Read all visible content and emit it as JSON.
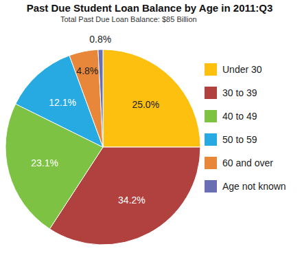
{
  "chart_data": {
    "type": "pie",
    "title": "Past Due Student Loan Balance by Age in 2011:Q3",
    "subtitle": "Total Past Due Loan Balance:  $85 Billion",
    "categories": [
      "Under 30",
      "30 to 39",
      "40 to 49",
      "50 to 59",
      "60 and over",
      "Age not known"
    ],
    "values": [
      25.0,
      34.2,
      23.1,
      12.1,
      4.8,
      0.8
    ],
    "value_labels": [
      "25.0%",
      "34.2%",
      "23.1%",
      "12.1%",
      "4.8%",
      "0.8%"
    ],
    "colors": [
      "#fdc00f",
      "#b0413e",
      "#7dc242",
      "#27aae1",
      "#e8873a",
      "#6a6fb3"
    ],
    "data_labels": true,
    "legend": "right"
  }
}
